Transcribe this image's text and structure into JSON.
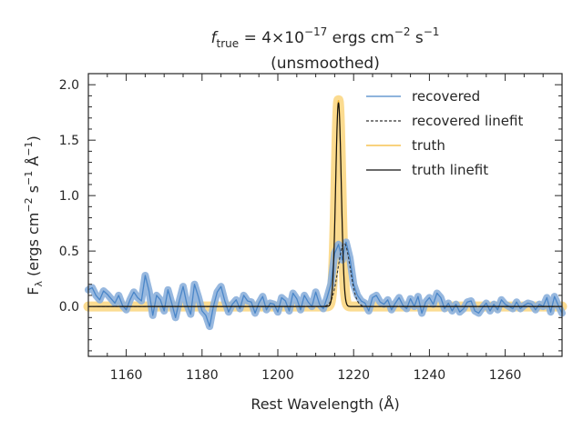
{
  "chart_data": {
    "type": "line",
    "title": {
      "f_symbol": "f",
      "f_subscript": "true",
      "equals": " = 4×10",
      "exponent": "−17",
      "units_prefix": " ergs cm",
      "cm_exp": "−2",
      "units_s": " s",
      "s_exp": "−1",
      "subtitle": "(unsmoothed)"
    },
    "xlabel": "Rest Wavelength (Å)",
    "ylabel": {
      "main": "F",
      "sub": "λ",
      "units": " (ergs cm",
      "cm_exp": "−2",
      "s": " s",
      "s_exp": "−1",
      "ang": " Å",
      "ang_exp": "−1",
      "close": ")"
    },
    "xlim": [
      1150,
      1275
    ],
    "ylim": [
      -0.45,
      2.1
    ],
    "xticks": [
      1160,
      1180,
      1200,
      1220,
      1240,
      1260
    ],
    "xtick_labels": [
      "1160",
      "1180",
      "1200",
      "1220",
      "1240",
      "1260"
    ],
    "yticks": [
      0.0,
      0.5,
      1.0,
      1.5,
      2.0
    ],
    "ytick_labels": [
      "0.0",
      "0.5",
      "1.0",
      "1.5",
      "2.0"
    ],
    "legend": {
      "position": "upper right",
      "entries": [
        {
          "label": "recovered",
          "color": "#4a86c8",
          "style": "solid"
        },
        {
          "label": "recovered linefit",
          "color": "#333333",
          "style": "dashed"
        },
        {
          "label": "truth",
          "color": "#f5b731",
          "style": "solid"
        },
        {
          "label": "truth linefit",
          "color": "#111111",
          "style": "solid"
        }
      ]
    },
    "series": [
      {
        "name": "recovered",
        "color": "#4a86c8",
        "band_color": "#8cb0dc",
        "x": [
          1150,
          1151,
          1152,
          1153,
          1154,
          1155,
          1156,
          1157,
          1158,
          1159,
          1160,
          1161,
          1162,
          1163,
          1164,
          1165,
          1166,
          1167,
          1168,
          1169,
          1170,
          1171,
          1172,
          1173,
          1174,
          1175,
          1176,
          1177,
          1178,
          1179,
          1180,
          1181,
          1182,
          1183,
          1184,
          1185,
          1186,
          1187,
          1188,
          1189,
          1190,
          1191,
          1192,
          1193,
          1194,
          1195,
          1196,
          1197,
          1198,
          1199,
          1200,
          1201,
          1202,
          1203,
          1204,
          1205,
          1206,
          1207,
          1208,
          1209,
          1210,
          1211,
          1212,
          1213,
          1214,
          1215,
          1216,
          1217,
          1218,
          1219,
          1220,
          1221,
          1222,
          1223,
          1224,
          1225,
          1226,
          1227,
          1228,
          1229,
          1230,
          1231,
          1232,
          1233,
          1234,
          1235,
          1236,
          1237,
          1238,
          1239,
          1240,
          1241,
          1242,
          1243,
          1244,
          1245,
          1246,
          1247,
          1248,
          1249,
          1250,
          1251,
          1252,
          1253,
          1254,
          1255,
          1256,
          1257,
          1258,
          1259,
          1260,
          1261,
          1262,
          1263,
          1264,
          1265,
          1266,
          1267,
          1268,
          1269,
          1270,
          1271,
          1272,
          1273,
          1274,
          1275
        ],
        "y": [
          0.15,
          0.17,
          0.1,
          0.06,
          0.14,
          0.11,
          0.07,
          0.03,
          0.1,
          0.01,
          -0.03,
          0.06,
          0.13,
          0.08,
          0.05,
          0.28,
          0.14,
          -0.08,
          0.1,
          0.06,
          -0.04,
          0.15,
          0.03,
          -0.1,
          0.05,
          0.18,
          0.02,
          -0.07,
          0.2,
          0.09,
          -0.04,
          -0.08,
          -0.18,
          0.0,
          0.13,
          0.18,
          0.05,
          -0.05,
          0.02,
          0.06,
          -0.02,
          0.1,
          0.05,
          0.04,
          -0.06,
          0.03,
          0.09,
          -0.03,
          0.03,
          0.02,
          -0.05,
          0.08,
          0.05,
          -0.04,
          0.12,
          0.07,
          -0.03,
          0.1,
          0.04,
          0.0,
          0.13,
          0.02,
          -0.02,
          0.08,
          0.2,
          0.48,
          0.56,
          0.42,
          0.58,
          0.44,
          0.2,
          0.1,
          0.05,
          0.03,
          -0.04,
          0.08,
          0.1,
          0.04,
          0.02,
          0.06,
          -0.03,
          0.03,
          0.08,
          0.01,
          -0.02,
          0.07,
          0.0,
          0.09,
          -0.06,
          0.04,
          0.08,
          0.02,
          0.12,
          0.08,
          -0.02,
          0.03,
          -0.04,
          0.02,
          -0.05,
          -0.02,
          0.04,
          0.05,
          -0.04,
          -0.06,
          -0.01,
          0.03,
          -0.04,
          0.02,
          -0.03,
          0.06,
          0.02,
          0.0,
          -0.02,
          0.04,
          -0.02,
          0.01,
          0.03,
          0.02,
          -0.03,
          0.02,
          0.0,
          0.08,
          -0.05,
          0.09,
          0.01,
          -0.06
        ]
      },
      {
        "name": "recovered linefit",
        "color": "#333333",
        "gauss": {
          "amp": 0.57,
          "center": 1217.5,
          "sigma": 1.6,
          "base": 0.0
        }
      },
      {
        "name": "truth",
        "color": "#f5b731",
        "band_color": "#fbd98a",
        "gauss": {
          "amp": 1.86,
          "center": 1216.0,
          "sigma": 0.75,
          "base": 0.0
        }
      },
      {
        "name": "truth linefit",
        "color": "#111111",
        "gauss": {
          "amp": 1.84,
          "center": 1216.0,
          "sigma": 0.73,
          "base": 0.0
        }
      }
    ]
  }
}
